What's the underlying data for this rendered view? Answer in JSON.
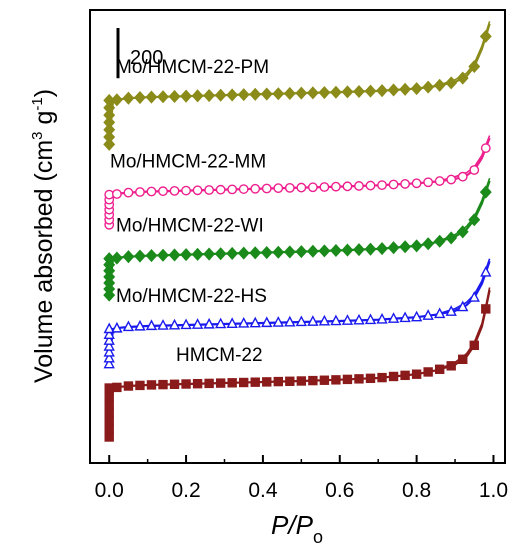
{
  "chart_data": {
    "type": "line",
    "xlabel_main": "P/P",
    "xlabel_sub": "o",
    "ylabel": "Volume absorbed (cm",
    "ylabel_sup1": "3",
    "ylabel_mid": " g",
    "ylabel_sup2": "-1",
    "ylabel_end": ")",
    "xlim": [
      -0.05,
      1.03
    ],
    "x_ticks": [
      "0.0",
      "0.2",
      "0.4",
      "0.6",
      "0.8",
      "1.0"
    ],
    "y_ticks_shown": false,
    "y_axis_note": "curves vertically offset; absolute offset not indicated",
    "scale_bar_label": "200",
    "scale_bar_value": 200,
    "grid": false,
    "legend": "inline labels",
    "series": [
      {
        "name": "Mo/HMCM-22-PM",
        "color": "#8b8b1a",
        "marker": "diamond",
        "offset": 1165,
        "x": [
          0.0,
          0.002,
          0.01,
          0.03,
          0.05,
          0.1,
          0.2,
          0.3,
          0.4,
          0.5,
          0.6,
          0.7,
          0.8,
          0.85,
          0.9,
          0.93,
          0.95,
          0.97,
          0.98,
          0.99
        ],
        "y": [
          0,
          50,
          175,
          180,
          184,
          188,
          192,
          196,
          200,
          204,
          208,
          213,
          222,
          232,
          248,
          272,
          310,
          380,
          430,
          480
        ]
      },
      {
        "name": "Mo/HMCM-22-MM",
        "color": "#ee1f8e",
        "marker": "circle",
        "offset": 845,
        "x": [
          0.0,
          0.002,
          0.01,
          0.03,
          0.05,
          0.1,
          0.2,
          0.3,
          0.4,
          0.5,
          0.6,
          0.7,
          0.8,
          0.85,
          0.9,
          0.93,
          0.95,
          0.97,
          0.98,
          0.99
        ],
        "y": [
          0,
          40,
          120,
          125,
          128,
          132,
          136,
          140,
          144,
          148,
          152,
          157,
          165,
          172,
          182,
          196,
          218,
          265,
          305,
          345
        ]
      },
      {
        "name": "Mo/HMCM-22-WI",
        "color": "#1a8a1a",
        "marker": "diamond",
        "offset": 565,
        "x": [
          0.0,
          0.002,
          0.01,
          0.03,
          0.05,
          0.1,
          0.2,
          0.3,
          0.4,
          0.5,
          0.6,
          0.7,
          0.8,
          0.85,
          0.9,
          0.93,
          0.95,
          0.97,
          0.98,
          0.99
        ],
        "y": [
          0,
          50,
          145,
          150,
          153,
          157,
          161,
          165,
          169,
          173,
          178,
          184,
          196,
          210,
          232,
          262,
          300,
          365,
          410,
          455
        ]
      },
      {
        "name": "Mo/HMCM-22-HS",
        "color": "#1a1aee",
        "marker": "triangle",
        "offset": 290,
        "x": [
          0.0,
          0.002,
          0.01,
          0.03,
          0.05,
          0.1,
          0.2,
          0.3,
          0.4,
          0.5,
          0.6,
          0.7,
          0.8,
          0.85,
          0.9,
          0.93,
          0.95,
          0.97,
          0.98,
          0.99
        ],
        "y": [
          0,
          40,
          140,
          145,
          148,
          152,
          156,
          160,
          164,
          168,
          172,
          177,
          187,
          197,
          212,
          235,
          265,
          320,
          365,
          410
        ]
      },
      {
        "name": "HMCM-22",
        "color": "#8b1a1a",
        "marker": "square",
        "offset": 0,
        "x": [
          0.0,
          0.002,
          0.01,
          0.03,
          0.05,
          0.1,
          0.2,
          0.3,
          0.4,
          0.5,
          0.6,
          0.7,
          0.8,
          0.85,
          0.9,
          0.93,
          0.95,
          0.97,
          0.98,
          0.99
        ],
        "y": [
          0,
          60,
          195,
          200,
          203,
          207,
          211,
          215,
          219,
          223,
          228,
          235,
          250,
          265,
          288,
          320,
          365,
          440,
          510,
          585
        ]
      }
    ]
  }
}
